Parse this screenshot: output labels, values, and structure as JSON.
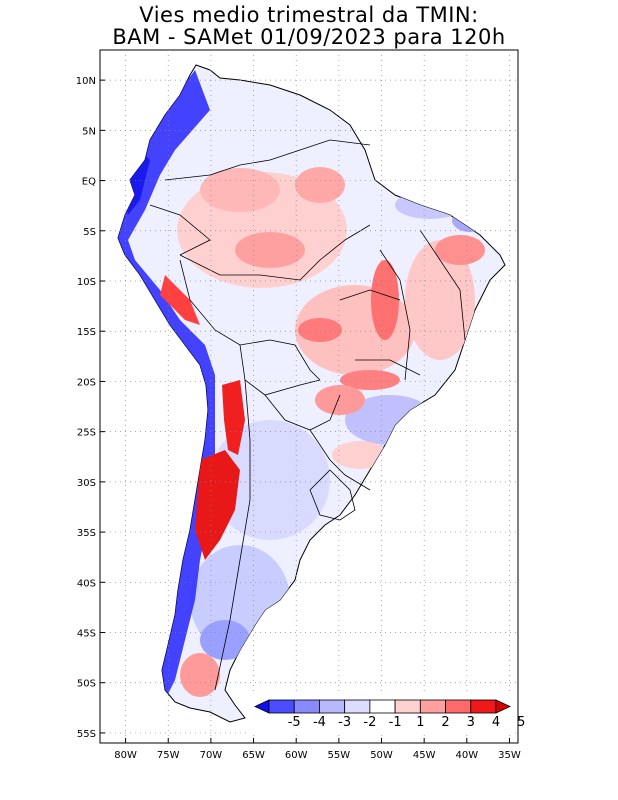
{
  "title": {
    "line1": "Vies medio trimestral da TMIN:",
    "line2": "BAM - SAMet 01/09/2023  para 120h"
  },
  "map": {
    "region": "South America",
    "lat_ticks": [
      "10N",
      "5N",
      "EQ",
      "5S",
      "10S",
      "15S",
      "20S",
      "25S",
      "30S",
      "35S",
      "40S",
      "45S",
      "50S",
      "55S"
    ],
    "lon_ticks": [
      "80W",
      "75W",
      "70W",
      "65W",
      "60W",
      "55W",
      "50W",
      "45W",
      "40W",
      "35W"
    ],
    "lat_range": [
      -56,
      13
    ],
    "lon_range": [
      -83,
      -34
    ],
    "grid": "dotted"
  },
  "colorbar": {
    "labels": [
      "-5",
      "-4",
      "-3",
      "-2",
      "-1",
      "1",
      "2",
      "3",
      "4",
      "5"
    ],
    "colors": [
      "#1010f0",
      "#4b4bff",
      "#8a8aff",
      "#b8b8ff",
      "#dcdcff",
      "#ffffff",
      "#ffd0d0",
      "#ffa0a0",
      "#ff6a6a",
      "#f01818",
      "#d80000"
    ]
  },
  "colors": {
    "ocean": "#ffffff",
    "land_base": "#eef0ff",
    "warm_bias": "#f4a0a0",
    "cold_bias": "#2020ff"
  }
}
